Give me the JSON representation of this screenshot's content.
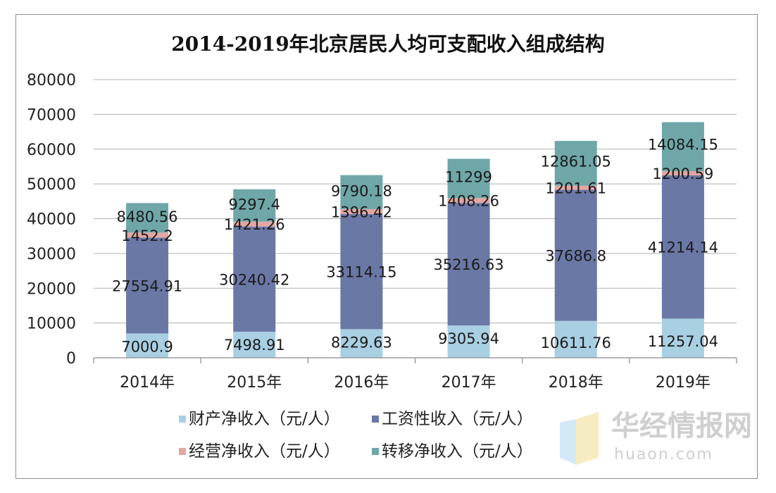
{
  "chart_data": {
    "type": "stacked-bar",
    "title": "2014-2019年北京居民人均可支配收入组成结构",
    "categories": [
      "2014年",
      "2015年",
      "2016年",
      "2017年",
      "2018年",
      "2019年"
    ],
    "ylim": [
      0,
      80000
    ],
    "yticks": [
      0,
      10000,
      20000,
      30000,
      40000,
      50000,
      60000,
      70000,
      80000
    ],
    "grid": true,
    "legend_position": "bottom",
    "series": [
      {
        "name": "财产净收入（元/人）",
        "color": "#a9cfe3",
        "values": [
          7000.9,
          7498.91,
          8229.63,
          9305.94,
          10611.76,
          11257.04
        ],
        "labels": [
          "7000.9",
          "7498.91",
          "8229.63",
          "9305.94",
          "10611.76",
          "11257.04"
        ]
      },
      {
        "name": "工资性收入（元/人）",
        "color": "#6a78a6",
        "values": [
          27554.91,
          30240.42,
          33114.15,
          35216.63,
          37686.8,
          41214.14
        ],
        "labels": [
          "27554.91",
          "30240.42",
          "33114.15",
          "35216.63",
          "37686.8",
          "41214.14"
        ]
      },
      {
        "name": "经营净收入（元/人）",
        "color": "#e3a7a3",
        "values": [
          1452.2,
          1421.26,
          1396.42,
          1408.26,
          1201.61,
          1200.59
        ],
        "labels": [
          "1452.2",
          "1421.26",
          "1396.42",
          "1408.26",
          "1201.61",
          "1200.59"
        ]
      },
      {
        "name": "转移净收入（元/人）",
        "color": "#6fa7a9",
        "values": [
          8480.56,
          9297.4,
          9790.18,
          11299,
          12861.05,
          14084.15
        ],
        "labels": [
          "8480.56",
          "9297.4",
          "9790.18",
          "11299",
          "12861.05",
          "14084.15"
        ]
      }
    ]
  },
  "watermark": {
    "main": "华经情报网",
    "sub": "huaon.com"
  }
}
